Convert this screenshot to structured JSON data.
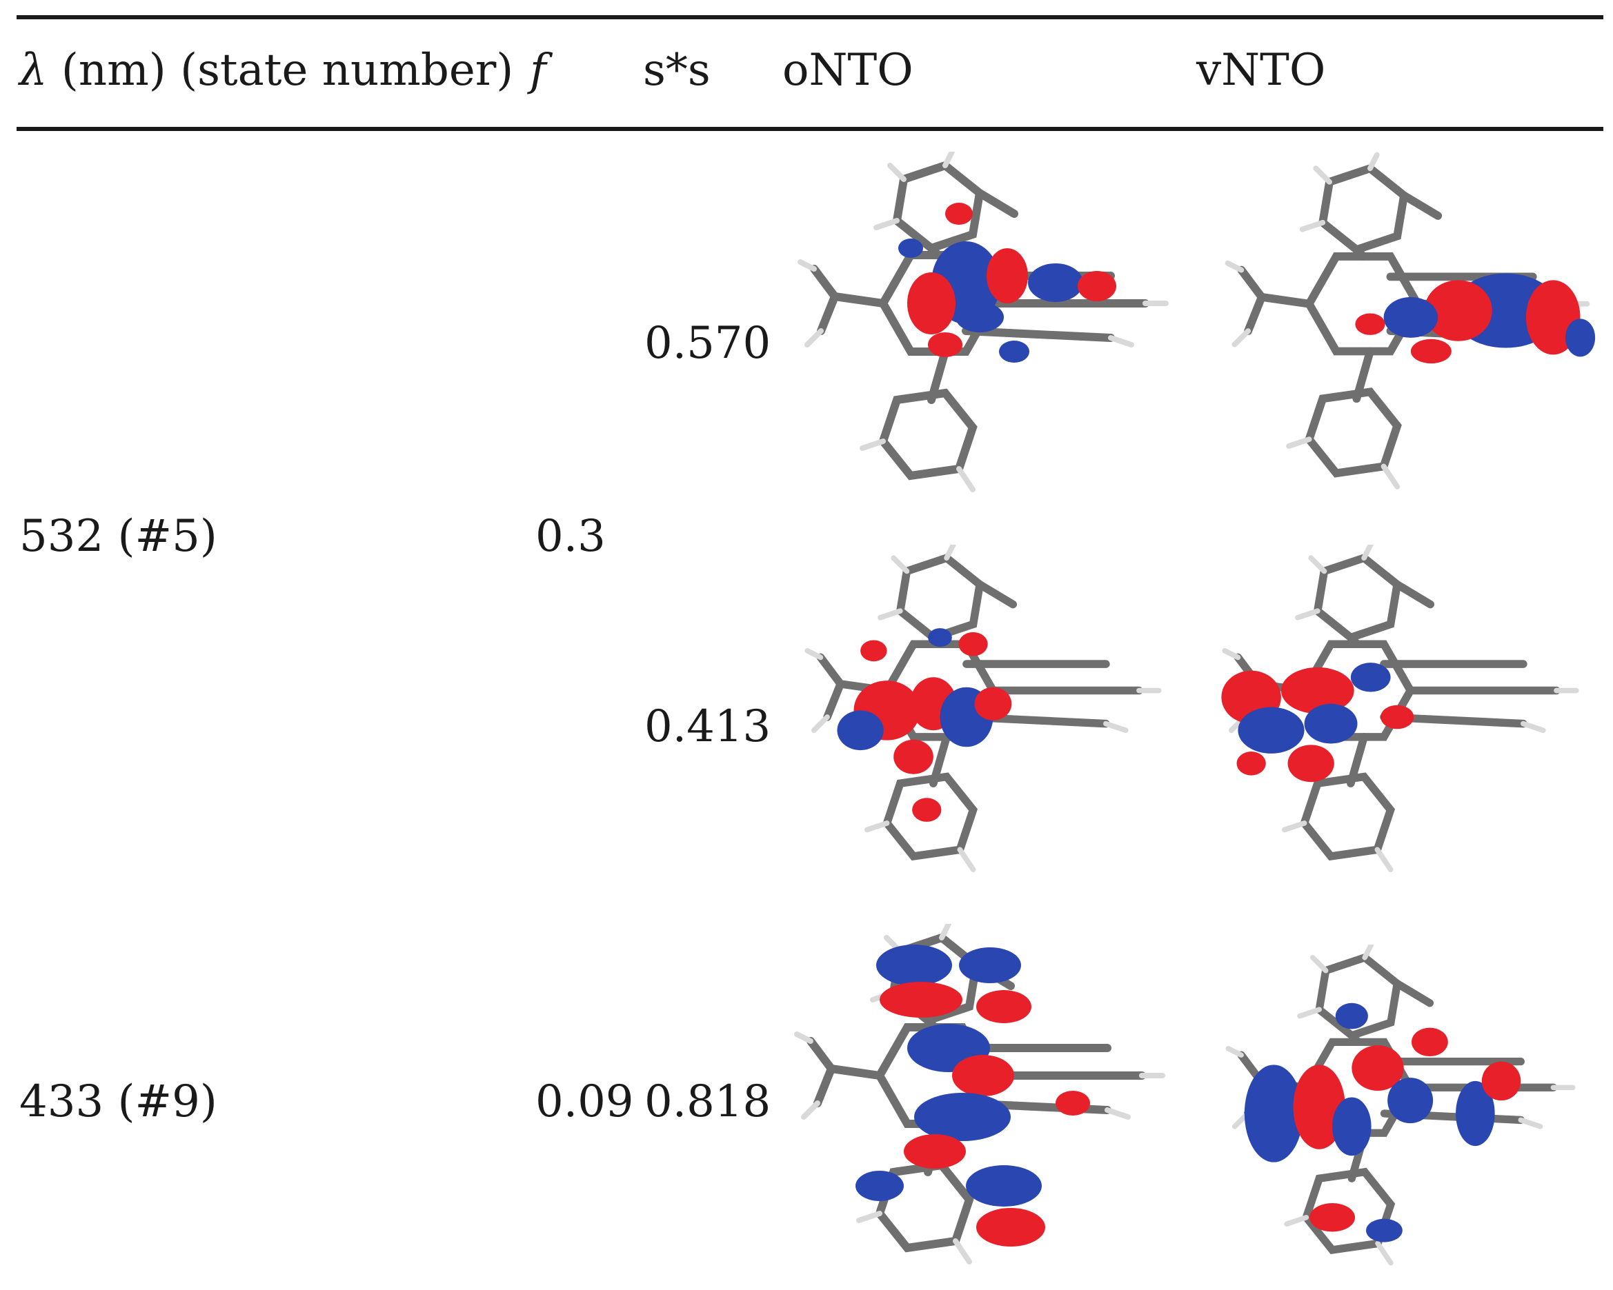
{
  "table": {
    "headers": {
      "lambda_symbol": "λ",
      "lambda_rest": "(nm) (state number)",
      "f": "f",
      "ss": "s*s",
      "onto": "oNTO",
      "vnto": "vNTO"
    },
    "rows": [
      {
        "lambda": "532 (#5)",
        "f": "0.3",
        "transitions": [
          {
            "ss": "0.570"
          },
          {
            "ss": "0.413"
          }
        ]
      },
      {
        "lambda": "433 (#9)",
        "f": "0.09",
        "transitions": [
          {
            "ss": "0.818"
          }
        ]
      }
    ]
  },
  "colors": {
    "positive_lobe": "#e8202a",
    "negative_lobe": "#2a46b0",
    "bond": "#7a7a7a",
    "hydrogen": "#e6e6e6"
  }
}
